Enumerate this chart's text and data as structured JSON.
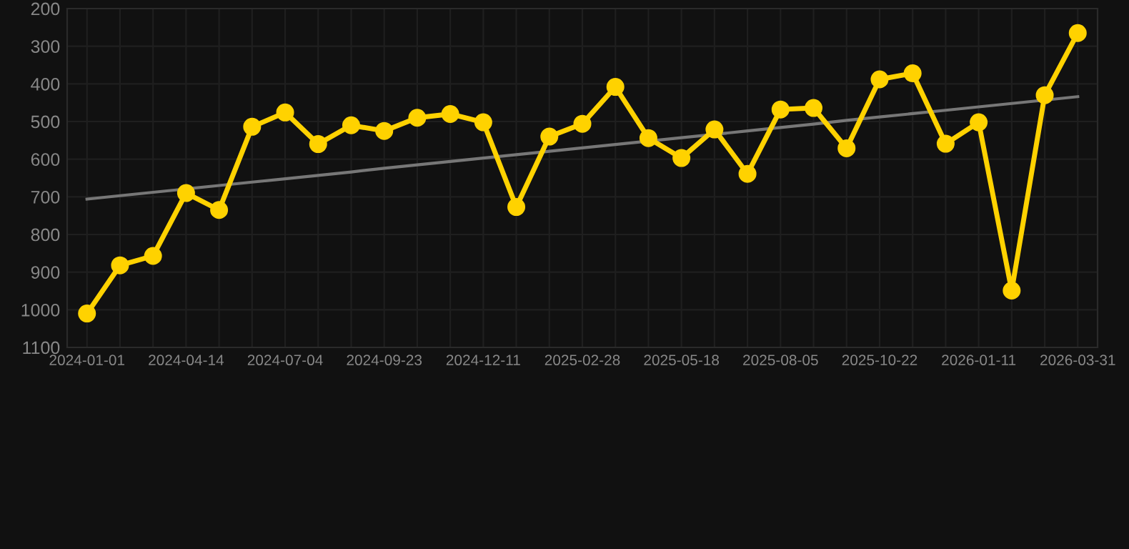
{
  "chart_data": {
    "type": "line",
    "categories": [
      "2024-01-01",
      null,
      null,
      "2024-04-14",
      null,
      null,
      "2024-07-04",
      null,
      null,
      "2024-09-23",
      null,
      null,
      "2024-12-11",
      null,
      null,
      "2025-02-28",
      null,
      null,
      "2025-05-18",
      null,
      null,
      "2025-08-05",
      null,
      null,
      "2025-10-22",
      null,
      null,
      "2026-01-11",
      null,
      null,
      "2026-03-31"
    ],
    "series": [
      {
        "color": "#ffd200",
        "marker": "circle",
        "values": [
          1010,
          882,
          857,
          690,
          735,
          514,
          476,
          560,
          510,
          525,
          490,
          480,
          502,
          727,
          540,
          506,
          408,
          544,
          597,
          521,
          639,
          468,
          464,
          571,
          388,
          372,
          559,
          502,
          949,
          430,
          265
        ]
      },
      {
        "color": "#777777",
        "marker": "none",
        "values": [
          706,
          697,
          688,
          null,
          670,
          661,
          652,
          643,
          634,
          624,
          615,
          606,
          597,
          588,
          579,
          570,
          561,
          null,
          543,
          null,
          525,
          516,
          507,
          497,
          488,
          479,
          470,
          461,
          452,
          443,
          434
        ]
      }
    ],
    "ylim": [
      1100,
      200
    ],
    "yticks": [
      200,
      300,
      400,
      500,
      600,
      700,
      800,
      900,
      1000,
      1100
    ],
    "grid": true
  }
}
